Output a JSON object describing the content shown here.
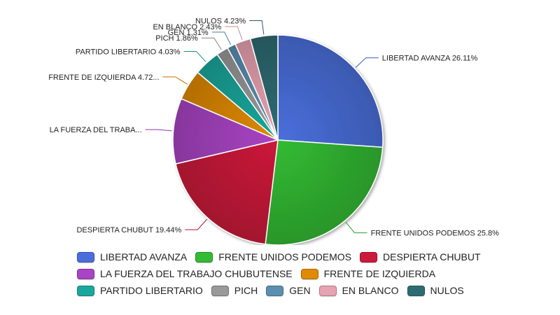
{
  "chart_data": {
    "type": "pie",
    "series": [
      {
        "name": "LIBERTAD AVANZA",
        "value": 26.11,
        "label": "LIBERTAD AVANZA 26.11%",
        "color": "#4a6fdc"
      },
      {
        "name": "FRENTE UNIDOS PODEMOS",
        "value": 25.8,
        "label": "FRENTE UNIDOS PODEMOS 25.8%",
        "color": "#33bb33"
      },
      {
        "name": "DESPIERTA CHUBUT",
        "value": 19.44,
        "label": "DESPIERTA CHUBUT 19.44%",
        "color": "#cc1a3a"
      },
      {
        "name": "LA FUERZA DEL TRABAJO CHUBUTENSE",
        "value": 10.08,
        "label": "LA FUERZA DEL TRABA...",
        "color": "#a944c4"
      },
      {
        "name": "FRENTE DE IZQUIERDA",
        "value": 4.72,
        "label": "FRENTE DE IZQUIERDA 4.72...",
        "color": "#e08a00"
      },
      {
        "name": "PARTIDO LIBERTARIO",
        "value": 4.03,
        "label": "PARTIDO LIBERTARIO 4.03%",
        "color": "#1aa89c"
      },
      {
        "name": "PICH",
        "value": 1.86,
        "label": "PICH 1.86%",
        "color": "#999999"
      },
      {
        "name": "GEN",
        "value": 1.31,
        "label": "GEN 1.31%",
        "color": "#5b8fb0"
      },
      {
        "name": "EN BLANCO",
        "value": 2.43,
        "label": "EN BLANCO 2.43%",
        "color": "#e8a2b0"
      },
      {
        "name": "NULOS",
        "value": 4.23,
        "label": "NULOS 4.23%",
        "color": "#2f6b73"
      }
    ],
    "legend_position": "bottom"
  },
  "legend_rows": [
    [
      0,
      1,
      2
    ],
    [
      3,
      4
    ],
    [
      5,
      6,
      7,
      8,
      9
    ]
  ]
}
